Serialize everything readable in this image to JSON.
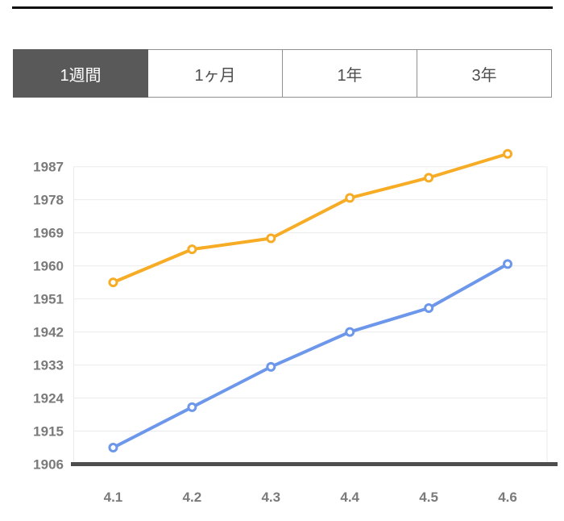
{
  "page": {
    "background": "#ffffff",
    "top_rule_color": "#0f0f0f"
  },
  "tabs": {
    "items": [
      {
        "label": "1週間",
        "active": true
      },
      {
        "label": "1ヶ月",
        "active": false
      },
      {
        "label": "1年",
        "active": false
      },
      {
        "label": "3年",
        "active": false
      }
    ],
    "active_bg": "#595959",
    "active_text_color": "#ffffff",
    "inactive_text_color": "#4d4d4d",
    "border_color": "#8f8f8f"
  },
  "chart_data": {
    "type": "line",
    "title": "",
    "xlabel": "",
    "ylabel": "",
    "x": [
      "4.1",
      "4.2",
      "4.3",
      "4.4",
      "4.5",
      "4.6"
    ],
    "y_ticks": [
      1906,
      1915,
      1924,
      1933,
      1942,
      1951,
      1960,
      1969,
      1978,
      1987
    ],
    "ylim": [
      1906,
      1994
    ],
    "grid": "horizontal",
    "legend": "none",
    "series": [
      {
        "name": "orange-line",
        "color": "#F7AC26",
        "marker": "open-circle",
        "values": [
          1955.5,
          1964.5,
          1967.5,
          1978.5,
          1984,
          1990.5
        ]
      },
      {
        "name": "blue-line",
        "color": "#6C97EA",
        "marker": "open-circle",
        "values": [
          1910.5,
          1921.5,
          1932.5,
          1942,
          1948.5,
          1960.5
        ]
      }
    ],
    "gridline_color": "#ebebeb",
    "baseline_color": "#4d4d4d",
    "axis_label_color": "#7a7a7a"
  }
}
